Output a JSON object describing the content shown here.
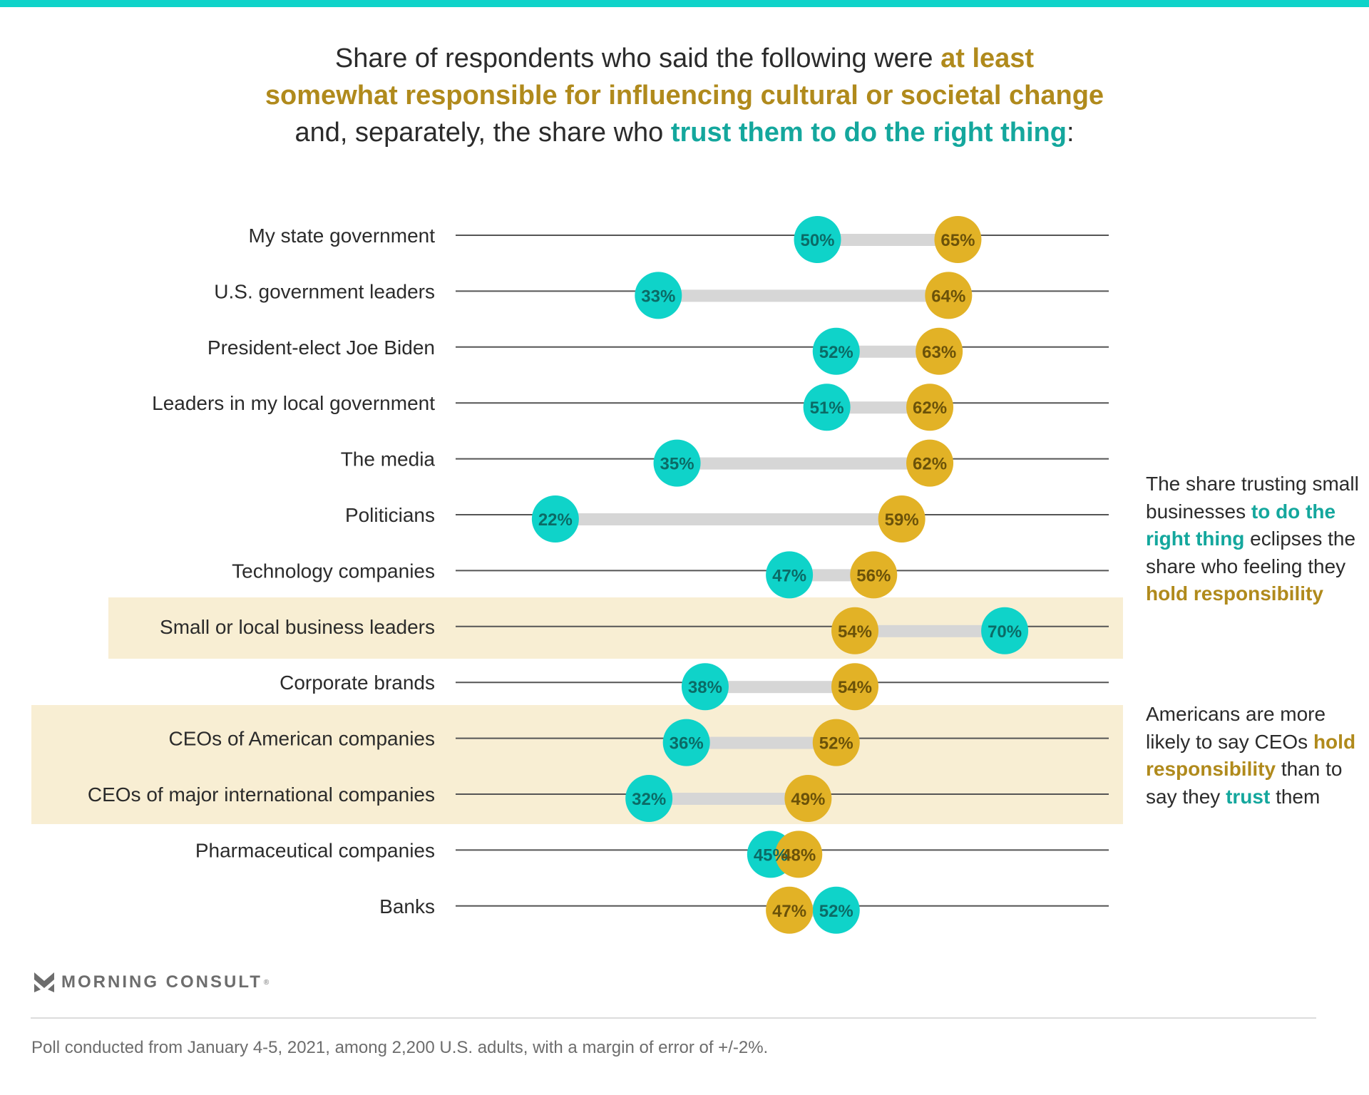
{
  "title": {
    "line1_plain": "Share of respondents who said the following were ",
    "line1_gold": "at least",
    "line2_gold": "somewhat responsible for influencing cultural or societal change",
    "line3_plain": "and, separately, the share who ",
    "line3_teal": "trust them to do the right thing",
    "line3_end": ":"
  },
  "colors": {
    "trust": "#0fd3c9",
    "responsible": "#e2b226",
    "connector": "#d6d6d6",
    "axis": "#555555",
    "highlight": "#f8eed3"
  },
  "chart_data": {
    "type": "dumbbell",
    "title": "Share who say at least somewhat responsible for influencing cultural or societal change vs. share who trust them to do the right thing",
    "unit": "%",
    "xlim": [
      0,
      100
    ],
    "series": [
      {
        "name": "Trust them to do the right thing",
        "color": "#0fd3c9"
      },
      {
        "name": "At least somewhat responsible for influencing cultural or societal change",
        "color": "#e2b226"
      }
    ],
    "categories": [
      "My state government",
      "U.S. government leaders",
      "President-elect Joe Biden",
      "Leaders in my local government",
      "The media",
      "Politicians",
      "Technology companies",
      "Small or local business leaders",
      "Corporate brands",
      "CEOs of American companies",
      "CEOs of major international companies",
      "Pharmaceutical companies",
      "Banks"
    ],
    "trust": [
      50,
      33,
      52,
      51,
      35,
      22,
      47,
      70,
      38,
      36,
      32,
      45,
      52
    ],
    "responsible": [
      65,
      64,
      63,
      62,
      62,
      59,
      56,
      54,
      54,
      52,
      49,
      48,
      47
    ],
    "highlighted_groups": [
      [
        7
      ],
      [
        9,
        10
      ]
    ]
  },
  "annotations": [
    {
      "parts": [
        {
          "t": "The share trusting small businesses ",
          "c": ""
        },
        {
          "t": "to do the right thing",
          "c": "teal"
        },
        {
          "t": " eclipses the share who feeling they ",
          "c": ""
        },
        {
          "t": "hold responsibility",
          "c": "gold"
        }
      ]
    },
    {
      "parts": [
        {
          "t": "Americans are more likely to say CEOs ",
          "c": ""
        },
        {
          "t": "hold responsibility",
          "c": "gold"
        },
        {
          "t": " than to say they ",
          "c": ""
        },
        {
          "t": "trust",
          "c": "teal"
        },
        {
          "t": " them",
          "c": ""
        }
      ]
    }
  ],
  "logo": {
    "text": "MORNING CONSULT",
    "mark": "®"
  },
  "footnote": "Poll conducted from January 4-5, 2021, among 2,200 U.S. adults, with a margin of error of +/-2%."
}
